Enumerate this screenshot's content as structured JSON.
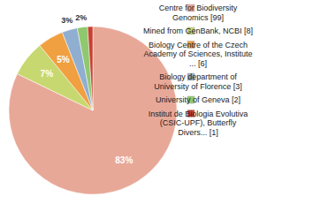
{
  "chart_data": {
    "type": "pie",
    "categories": [
      "Centre for Biodiversity\nGenomics [99]",
      "Mined from GenBank, NCBI [8]",
      "Biology Centre of the Czech\nAcademy of Sciences, Institute\n... [6]",
      "Biology department of\nUniversity of Florence [3]",
      "University of Geneva [2]",
      "Institut de Biologia Evolutiva\n(CSIC-UPF), Butterfly\nDivers... [1]"
    ],
    "values": [
      83,
      7,
      5,
      3,
      2,
      1
    ],
    "value_labels": [
      "83%",
      "7%",
      "5%",
      "3%",
      "2%",
      null
    ],
    "colors": [
      "#e8a898",
      "#c8d870",
      "#f0a040",
      "#90aed0",
      "#90c870",
      "#c84030"
    ],
    "data_labels": true,
    "legend": "right"
  }
}
